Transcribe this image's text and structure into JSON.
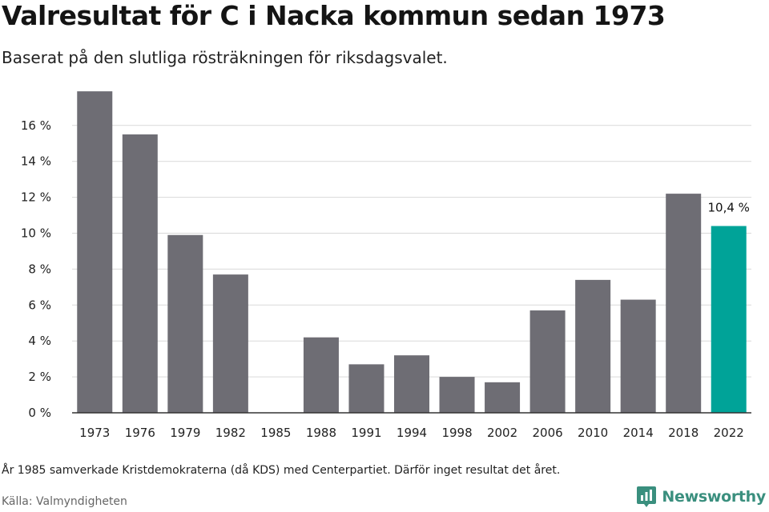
{
  "header": {
    "title": "Valresultat för C i Nacka kommun sedan 1973",
    "subtitle": "Baserat på den slutliga rösträkningen för riksdagsvalet."
  },
  "footer": {
    "note": "År 1985 samverkade Kristdemokraterna (då KDS) med Centerpartiet. Därför inget resultat det året.",
    "source": "Källa: Valmyndigheten",
    "brand": "Newsworthy"
  },
  "colors": {
    "bar": "#6e6d74",
    "highlight": "#00a398",
    "grid": "#d9d9d9",
    "axis": "#333333",
    "brand": "#3a8f7e"
  },
  "chart_data": {
    "type": "bar",
    "categories": [
      "1973",
      "1976",
      "1979",
      "1982",
      "1985",
      "1988",
      "1991",
      "1994",
      "1998",
      "2002",
      "2006",
      "2010",
      "2014",
      "2018",
      "2022"
    ],
    "values": [
      17.9,
      15.5,
      9.9,
      7.7,
      null,
      4.2,
      2.7,
      3.2,
      2.0,
      1.7,
      5.7,
      7.4,
      6.3,
      12.2,
      10.4
    ],
    "highlight_index": 14,
    "data_labels": [
      {
        "index": 14,
        "text": "10,4 %"
      }
    ],
    "y_ticks": [
      {
        "value": 0,
        "label": "0 %"
      },
      {
        "value": 2,
        "label": "2 %"
      },
      {
        "value": 4,
        "label": "4 %"
      },
      {
        "value": 6,
        "label": "6 %"
      },
      {
        "value": 8,
        "label": "8 %"
      },
      {
        "value": 10,
        "label": "10 %"
      },
      {
        "value": 12,
        "label": "12 %"
      },
      {
        "value": 14,
        "label": "14 %"
      },
      {
        "value": 16,
        "label": "16 %"
      }
    ],
    "ylim": [
      0,
      18
    ],
    "grid": true,
    "legend": "none"
  }
}
